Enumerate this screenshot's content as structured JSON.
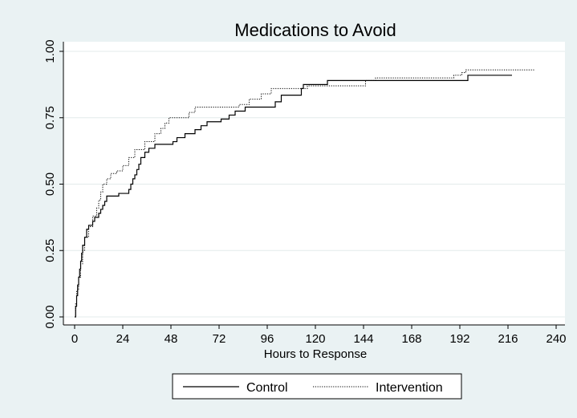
{
  "chart_data": {
    "type": "line",
    "step": true,
    "title": "Medications to Avoid",
    "xlabel": "Hours to Response",
    "ylabel": "",
    "xlim": [
      0,
      240
    ],
    "ylim": [
      0,
      1
    ],
    "xticks": [
      0,
      24,
      48,
      72,
      96,
      120,
      144,
      168,
      192,
      216,
      240
    ],
    "xtick_labels": [
      "0",
      "24",
      "48",
      "72",
      "96",
      "120",
      "144",
      "168",
      "192",
      "216",
      "240"
    ],
    "yticks": [
      0,
      0.25,
      0.5,
      0.75,
      1.0
    ],
    "ytick_labels": [
      "0.00",
      "0.25",
      "0.50",
      "0.75",
      "1.00"
    ],
    "grid": "horizontal",
    "legend_position": "bottom",
    "series": [
      {
        "name": "Control",
        "color": "#000000",
        "style": "solid",
        "points": [
          [
            0,
            0
          ],
          [
            0.5,
            0.04
          ],
          [
            1,
            0.08
          ],
          [
            1.5,
            0.12
          ],
          [
            2,
            0.15
          ],
          [
            2.5,
            0.18
          ],
          [
            3,
            0.21
          ],
          [
            3.5,
            0.24
          ],
          [
            4,
            0.27
          ],
          [
            5,
            0.3
          ],
          [
            6,
            0.33
          ],
          [
            7,
            0.345
          ],
          [
            9,
            0.36
          ],
          [
            10,
            0.375
          ],
          [
            12,
            0.39
          ],
          [
            13,
            0.405
          ],
          [
            14,
            0.42
          ],
          [
            15,
            0.435
          ],
          [
            16,
            0.455
          ],
          [
            22,
            0.465
          ],
          [
            27,
            0.48
          ],
          [
            28,
            0.5
          ],
          [
            29,
            0.52
          ],
          [
            30,
            0.535
          ],
          [
            31,
            0.555
          ],
          [
            32,
            0.575
          ],
          [
            33,
            0.6
          ],
          [
            35,
            0.62
          ],
          [
            37,
            0.635
          ],
          [
            40,
            0.65
          ],
          [
            49,
            0.66
          ],
          [
            51,
            0.675
          ],
          [
            55,
            0.69
          ],
          [
            60,
            0.705
          ],
          [
            63,
            0.72
          ],
          [
            66,
            0.735
          ],
          [
            73,
            0.745
          ],
          [
            77,
            0.76
          ],
          [
            80,
            0.775
          ],
          [
            85,
            0.79
          ],
          [
            100,
            0.81
          ],
          [
            103,
            0.835
          ],
          [
            113,
            0.86
          ],
          [
            114,
            0.875
          ],
          [
            126,
            0.89
          ],
          [
            196,
            0.91
          ],
          [
            218,
            0.91
          ]
        ]
      },
      {
        "name": "Intervention",
        "color": "#000000",
        "style": "dotted",
        "points": [
          [
            0,
            0
          ],
          [
            0.5,
            0.05
          ],
          [
            1,
            0.1
          ],
          [
            2,
            0.15
          ],
          [
            3,
            0.2
          ],
          [
            4,
            0.25
          ],
          [
            5,
            0.3
          ],
          [
            7,
            0.34
          ],
          [
            9,
            0.38
          ],
          [
            11,
            0.41
          ],
          [
            12,
            0.44
          ],
          [
            13,
            0.47
          ],
          [
            14,
            0.5
          ],
          [
            16,
            0.52
          ],
          [
            18,
            0.54
          ],
          [
            21,
            0.55
          ],
          [
            24,
            0.57
          ],
          [
            27,
            0.6
          ],
          [
            30,
            0.63
          ],
          [
            35,
            0.66
          ],
          [
            40,
            0.69
          ],
          [
            43,
            0.71
          ],
          [
            45,
            0.73
          ],
          [
            47,
            0.75
          ],
          [
            57,
            0.77
          ],
          [
            60,
            0.79
          ],
          [
            82,
            0.8
          ],
          [
            87,
            0.82
          ],
          [
            93,
            0.84
          ],
          [
            98,
            0.86
          ],
          [
            116,
            0.87
          ],
          [
            145,
            0.89
          ],
          [
            150,
            0.9
          ],
          [
            189,
            0.91
          ],
          [
            193,
            0.92
          ],
          [
            195,
            0.93
          ],
          [
            229,
            0.93
          ]
        ]
      }
    ]
  }
}
